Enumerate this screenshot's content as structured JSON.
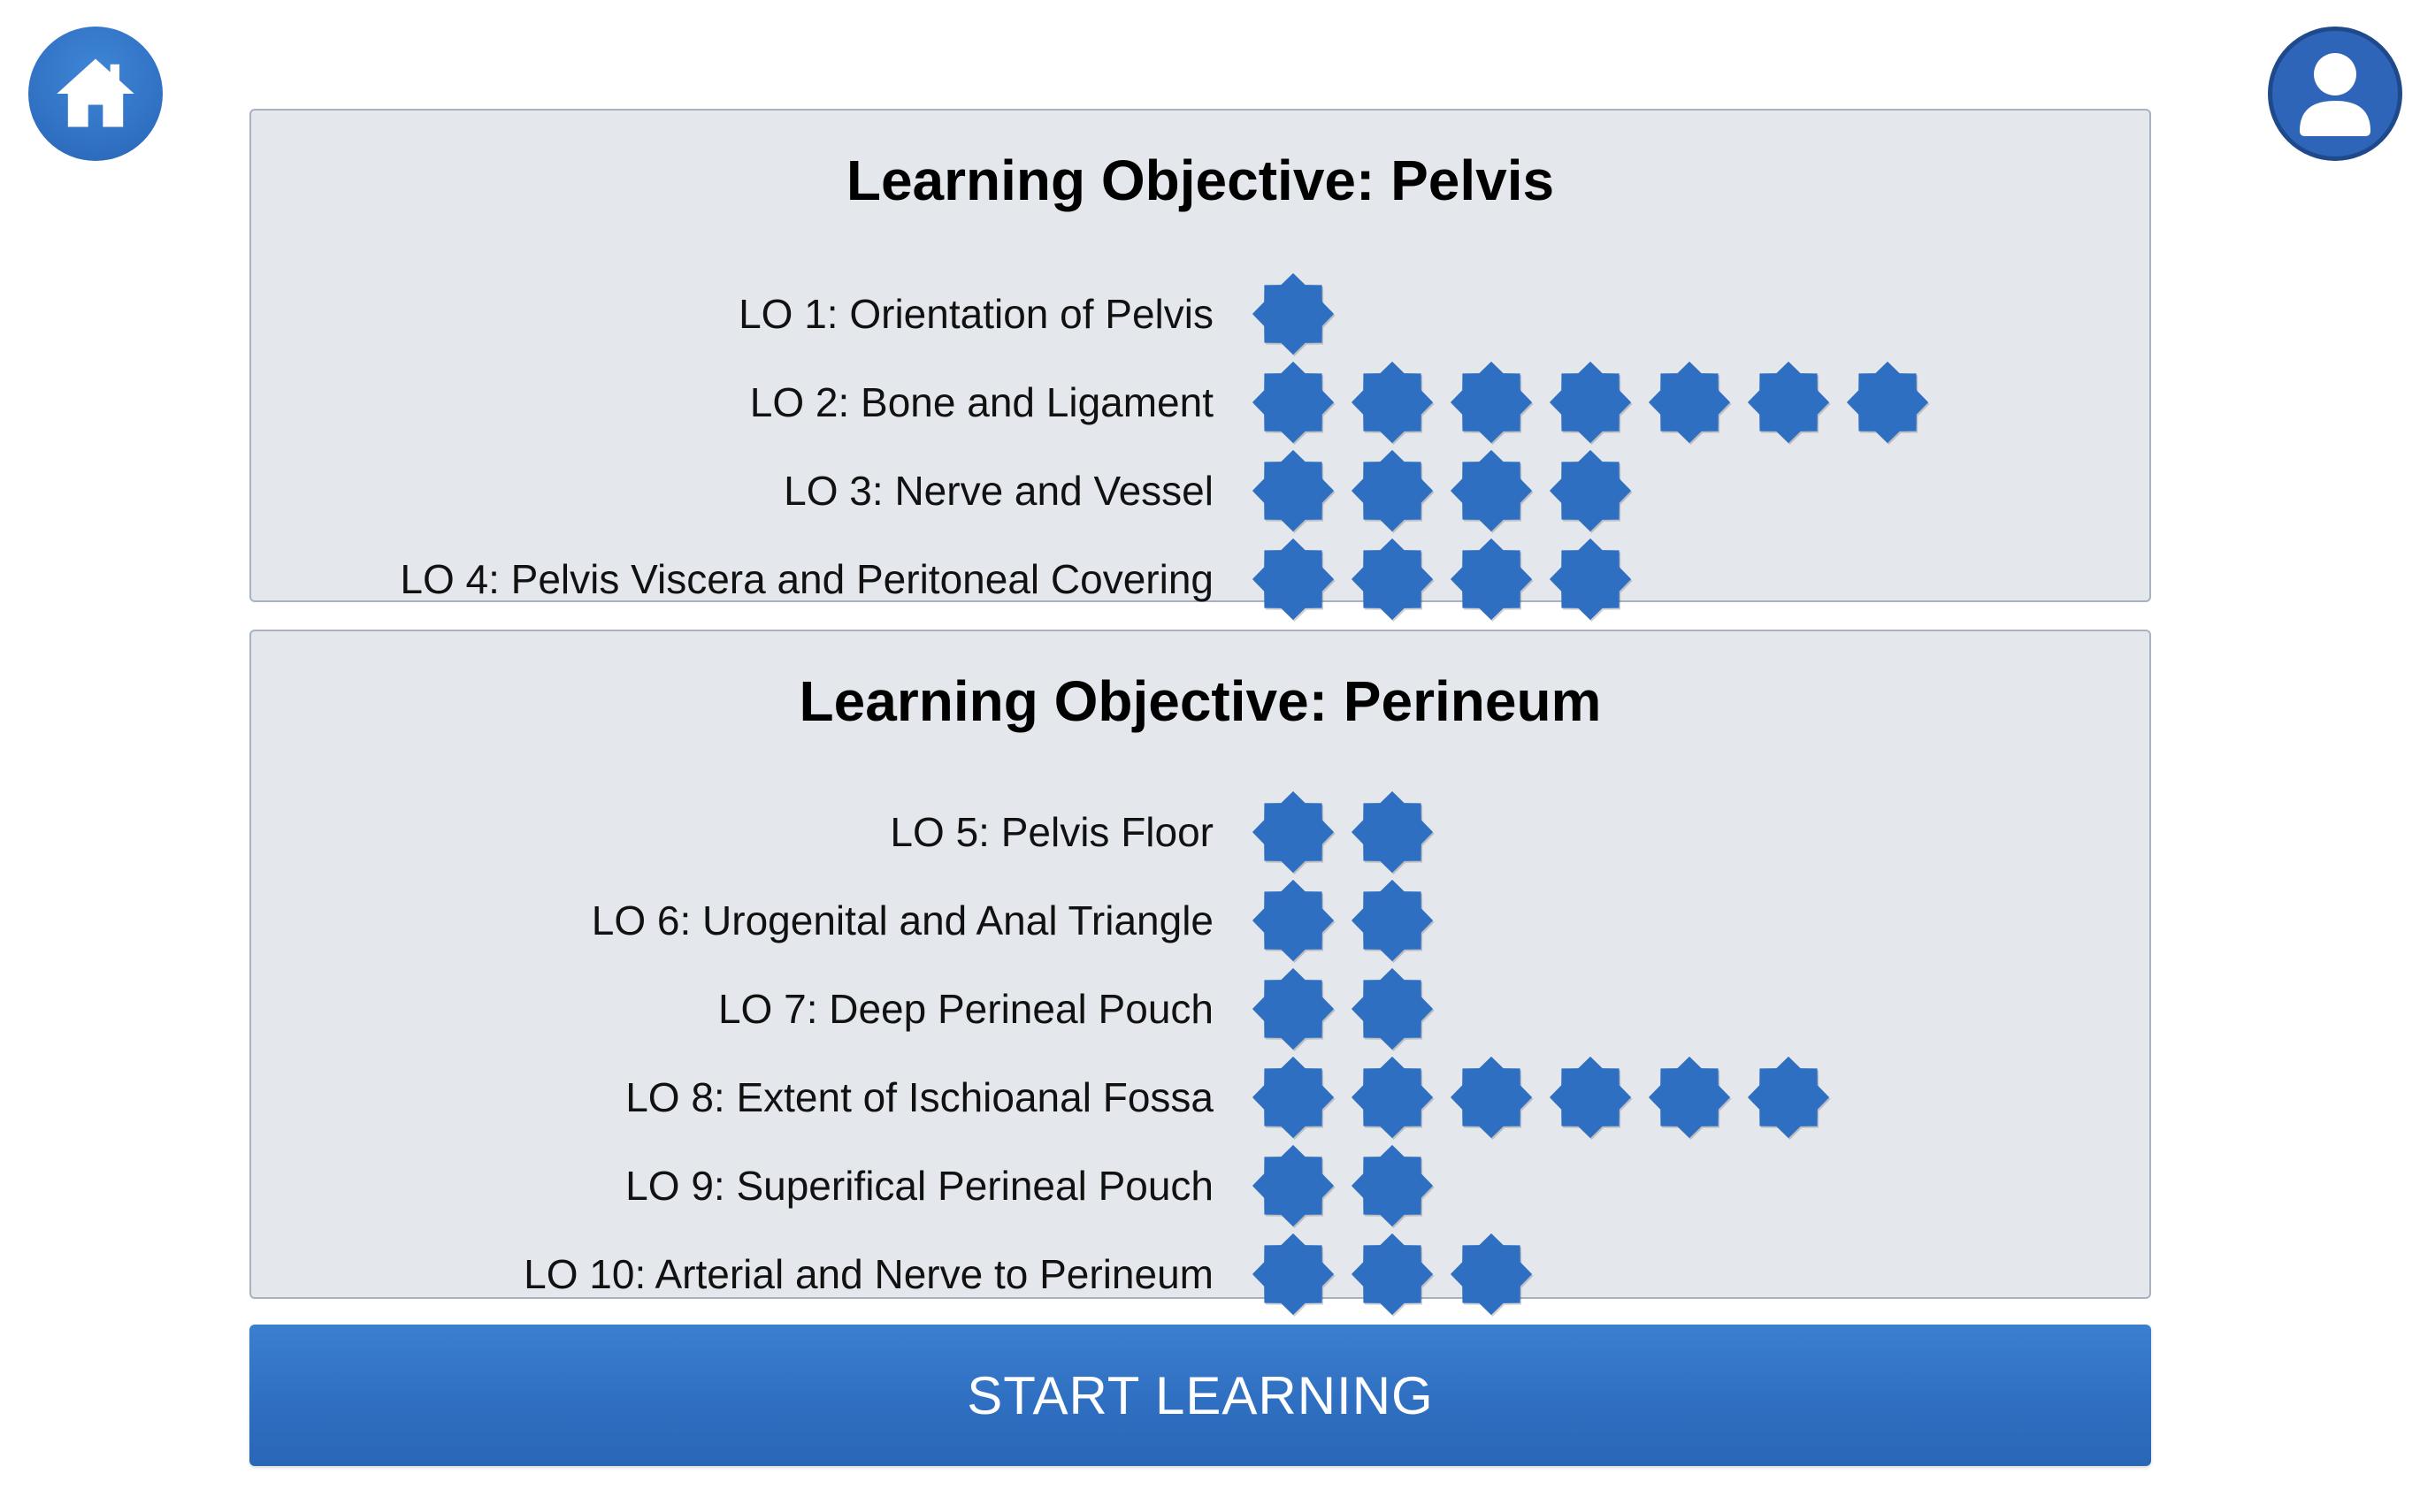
{
  "nav": {
    "home_icon": "home-icon",
    "profile_icon": "user-profile-icon"
  },
  "colors": {
    "accent": "#2f6fc1",
    "star": "#2f6fc1",
    "panel_bg": "#e4e8ed",
    "panel_border": "#a9b3c0"
  },
  "sections": [
    {
      "title": "Learning Objective: Pelvis",
      "objectives": [
        {
          "label": "LO 1: Orientation of Pelvis",
          "stars": 1
        },
        {
          "label": "LO 2: Bone and Ligament",
          "stars": 7
        },
        {
          "label": "LO 3: Nerve and Vessel",
          "stars": 4
        },
        {
          "label": "LO 4: Pelvis Viscera and Peritoneal Covering",
          "stars": 4
        }
      ]
    },
    {
      "title": "Learning Objective: Perineum",
      "objectives": [
        {
          "label": "LO 5: Pelvis Floor",
          "stars": 2
        },
        {
          "label": "LO 6: Urogenital and Anal Triangle",
          "stars": 2
        },
        {
          "label": "LO 7: Deep Perineal Pouch",
          "stars": 2
        },
        {
          "label": "LO 8: Extent of Ischioanal Fossa",
          "stars": 6
        },
        {
          "label": "LO 9: Superifical Perineal Pouch",
          "stars": 2
        },
        {
          "label": "LO 10: Arterial and Nerve to Perineum",
          "stars": 3
        }
      ]
    }
  ],
  "start_button": {
    "label": "START LEARNING"
  }
}
